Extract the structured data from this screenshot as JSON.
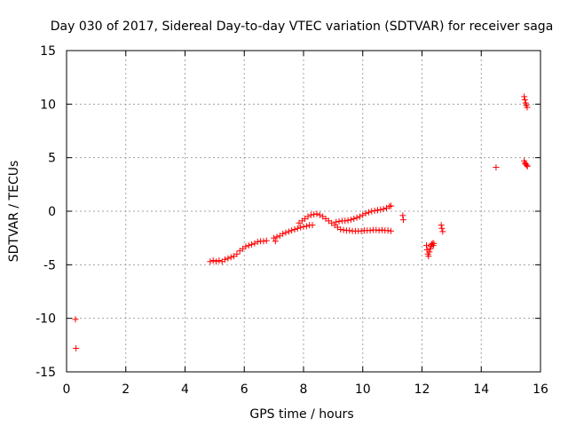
{
  "chart_data": {
    "type": "scatter",
    "title": "Day 030 of 2017, Sidereal Day-to-day VTEC variation (SDTVAR) for receiver saga",
    "xlabel": "GPS time / hours",
    "ylabel": "SDTVAR / TECUs",
    "xlim": [
      0,
      16
    ],
    "ylim": [
      -15,
      15
    ],
    "xticks": [
      0,
      2,
      4,
      6,
      8,
      10,
      12,
      14,
      16
    ],
    "yticks": [
      -15,
      -10,
      -5,
      0,
      5,
      10,
      15
    ],
    "grid": true,
    "marker": "+",
    "color": "#ff0000",
    "series": [
      {
        "name": "SDTVAR",
        "points": [
          [
            0.3,
            -10.1
          ],
          [
            0.32,
            -12.8
          ],
          [
            4.85,
            -4.7
          ],
          [
            4.95,
            -4.6
          ],
          [
            5.05,
            -4.7
          ],
          [
            5.15,
            -4.6
          ],
          [
            5.25,
            -4.7
          ],
          [
            5.35,
            -4.5
          ],
          [
            5.45,
            -4.4
          ],
          [
            5.55,
            -4.3
          ],
          [
            5.65,
            -4.2
          ],
          [
            5.75,
            -4.0
          ],
          [
            5.85,
            -3.7
          ],
          [
            5.95,
            -3.5
          ],
          [
            6.05,
            -3.3
          ],
          [
            6.15,
            -3.2
          ],
          [
            6.25,
            -3.1
          ],
          [
            6.35,
            -3.0
          ],
          [
            6.45,
            -2.85
          ],
          [
            6.55,
            -2.8
          ],
          [
            6.65,
            -2.8
          ],
          [
            6.75,
            -2.75
          ],
          [
            7.0,
            -2.5
          ],
          [
            7.05,
            -2.8
          ],
          [
            7.1,
            -2.4
          ],
          [
            7.2,
            -2.3
          ],
          [
            7.3,
            -2.1
          ],
          [
            7.4,
            -2.0
          ],
          [
            7.5,
            -1.9
          ],
          [
            7.6,
            -1.8
          ],
          [
            7.7,
            -1.7
          ],
          [
            7.8,
            -1.6
          ],
          [
            7.9,
            -1.5
          ],
          [
            8.0,
            -1.45
          ],
          [
            8.1,
            -1.4
          ],
          [
            8.2,
            -1.3
          ],
          [
            8.3,
            -1.3
          ],
          [
            7.85,
            -1.1
          ],
          [
            7.95,
            -0.9
          ],
          [
            8.05,
            -0.7
          ],
          [
            8.15,
            -0.5
          ],
          [
            8.25,
            -0.35
          ],
          [
            8.35,
            -0.3
          ],
          [
            8.45,
            -0.25
          ],
          [
            8.55,
            -0.35
          ],
          [
            8.65,
            -0.5
          ],
          [
            8.75,
            -0.7
          ],
          [
            8.85,
            -0.9
          ],
          [
            8.95,
            -1.1
          ],
          [
            9.05,
            -1.3
          ],
          [
            9.15,
            -1.5
          ],
          [
            9.25,
            -1.7
          ],
          [
            9.35,
            -1.75
          ],
          [
            9.45,
            -1.8
          ],
          [
            9.55,
            -1.8
          ],
          [
            9.65,
            -1.85
          ],
          [
            9.75,
            -1.85
          ],
          [
            9.85,
            -1.85
          ],
          [
            9.95,
            -1.85
          ],
          [
            10.05,
            -1.8
          ],
          [
            10.15,
            -1.8
          ],
          [
            10.25,
            -1.8
          ],
          [
            10.35,
            -1.75
          ],
          [
            10.45,
            -1.75
          ],
          [
            10.55,
            -1.8
          ],
          [
            10.65,
            -1.75
          ],
          [
            10.75,
            -1.8
          ],
          [
            10.85,
            -1.8
          ],
          [
            10.95,
            -1.85
          ],
          [
            9.1,
            -1.0
          ],
          [
            9.2,
            -0.95
          ],
          [
            9.3,
            -0.9
          ],
          [
            9.4,
            -0.9
          ],
          [
            9.5,
            -0.85
          ],
          [
            9.6,
            -0.8
          ],
          [
            9.7,
            -0.7
          ],
          [
            9.8,
            -0.6
          ],
          [
            9.9,
            -0.5
          ],
          [
            10.0,
            -0.35
          ],
          [
            10.1,
            -0.2
          ],
          [
            10.2,
            -0.1
          ],
          [
            10.3,
            0.0
          ],
          [
            10.4,
            0.05
          ],
          [
            10.5,
            0.1
          ],
          [
            10.6,
            0.15
          ],
          [
            10.7,
            0.2
          ],
          [
            10.8,
            0.3
          ],
          [
            10.9,
            0.45
          ],
          [
            10.95,
            0.5
          ],
          [
            11.35,
            -0.4
          ],
          [
            11.37,
            -0.8
          ],
          [
            12.15,
            -3.2
          ],
          [
            12.17,
            -3.6
          ],
          [
            12.2,
            -4.0
          ],
          [
            12.22,
            -4.2
          ],
          [
            12.25,
            -3.8
          ],
          [
            12.28,
            -3.5
          ],
          [
            12.3,
            -3.3
          ],
          [
            12.32,
            -3.1
          ],
          [
            12.35,
            -3.0
          ],
          [
            12.38,
            -3.2
          ],
          [
            12.4,
            -3.0
          ],
          [
            12.65,
            -1.3
          ],
          [
            12.67,
            -1.6
          ],
          [
            12.7,
            -1.9
          ],
          [
            14.5,
            4.1
          ],
          [
            15.45,
            10.7
          ],
          [
            15.47,
            10.4
          ],
          [
            15.5,
            10.1
          ],
          [
            15.52,
            9.9
          ],
          [
            15.55,
            9.7
          ],
          [
            15.45,
            4.7
          ],
          [
            15.48,
            4.5
          ],
          [
            15.5,
            4.4
          ],
          [
            15.53,
            4.3
          ],
          [
            15.56,
            4.2
          ]
        ]
      }
    ]
  }
}
